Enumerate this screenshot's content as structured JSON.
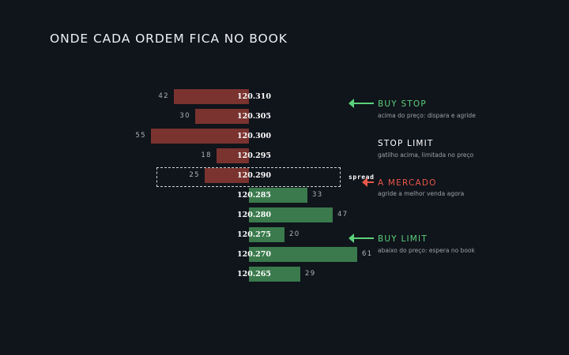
{
  "title": "ONDE CADA ORDEM FICA NO BOOK",
  "colors": {
    "background": "#10141b",
    "ask": "#7a332f",
    "bid": "#3a7a4c",
    "buy_stop": "#5cd07a",
    "stop_limit": "#ffffff",
    "market": "#e9584a",
    "buy_limit": "#5cd07a"
  },
  "book": {
    "asks": [
      {
        "price": "120.310",
        "qty": "42"
      },
      {
        "price": "120.305",
        "qty": "30"
      },
      {
        "price": "120.300",
        "qty": "55"
      },
      {
        "price": "120.295",
        "qty": "18"
      },
      {
        "price": "120.290",
        "qty": "25"
      }
    ],
    "bids": [
      {
        "price": "120.285",
        "qty": "33"
      },
      {
        "price": "120.280",
        "qty": "47"
      },
      {
        "price": "120.275",
        "qty": "20"
      },
      {
        "price": "120.270",
        "qty": "61"
      },
      {
        "price": "120.265",
        "qty": "29"
      }
    ],
    "spread_label": "spread"
  },
  "orders": {
    "buy_stop": {
      "title": "BUY STOP",
      "desc": "acima do preço: dispara e agride"
    },
    "stop_limit": {
      "title": "STOP LIMIT",
      "desc": "gatilho acima, limitada no preço"
    },
    "market": {
      "title": "A MERCADO",
      "desc": "agride a melhor venda agora"
    },
    "buy_limit": {
      "title": "BUY LIMIT",
      "desc": "abaixo do preço: espera no book"
    }
  }
}
